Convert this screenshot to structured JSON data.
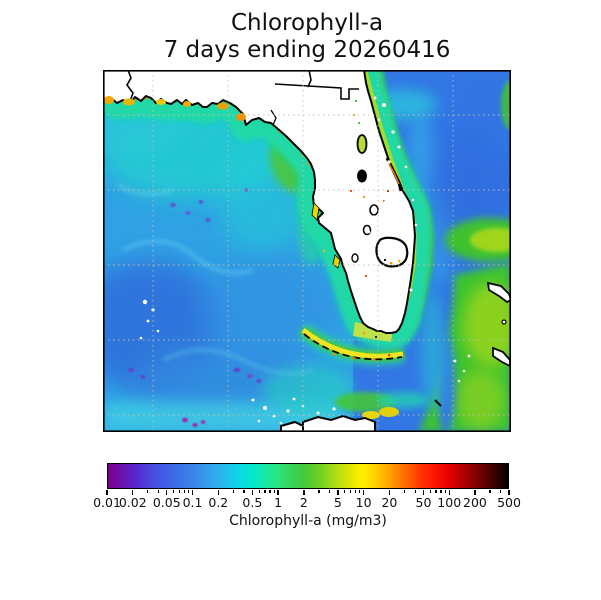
{
  "title": {
    "line1": "Chlorophyll-a",
    "line2": "7 days ending 20260416"
  },
  "colorbar": {
    "label": "Chlorophyll-a (mg/m3)",
    "scale": "log",
    "min": 0.01,
    "max": 500,
    "major_ticks": [
      0.01,
      0.02,
      0.05,
      0.1,
      0.2,
      0.5,
      1,
      2,
      5,
      10,
      20,
      50,
      100,
      200,
      500
    ],
    "tick_labels": [
      "0.01",
      "0.02",
      "0.05",
      "0.1",
      "0.2",
      "0.5",
      "1",
      "2",
      "5",
      "10",
      "20",
      "50",
      "100",
      "200",
      "500"
    ],
    "minor_ticks": [
      0.03,
      0.04,
      0.06,
      0.07,
      0.08,
      0.09,
      0.3,
      0.4,
      0.6,
      0.7,
      0.8,
      0.9,
      3,
      4,
      6,
      7,
      8,
      9,
      30,
      40,
      60,
      70,
      80,
      90,
      300,
      400
    ],
    "gradient": [
      {
        "v": 0.01,
        "c": "#7a0089"
      },
      {
        "v": 0.02,
        "c": "#5a23cd"
      },
      {
        "v": 0.035,
        "c": "#474fe2"
      },
      {
        "v": 0.05,
        "c": "#3f63e6"
      },
      {
        "v": 0.1,
        "c": "#3a84ea"
      },
      {
        "v": 0.2,
        "c": "#2fb1f0"
      },
      {
        "v": 0.35,
        "c": "#0cd8e6"
      },
      {
        "v": 0.5,
        "c": "#02e8cd"
      },
      {
        "v": 0.7,
        "c": "#17e9a7"
      },
      {
        "v": 1,
        "c": "#2ce47e"
      },
      {
        "v": 1.5,
        "c": "#38d254"
      },
      {
        "v": 2,
        "c": "#43ca39"
      },
      {
        "v": 3,
        "c": "#6ccf24"
      },
      {
        "v": 5,
        "c": "#b8dd12"
      },
      {
        "v": 8,
        "c": "#f0ea00"
      },
      {
        "v": 10,
        "c": "#ffef00"
      },
      {
        "v": 15,
        "c": "#ffc800"
      },
      {
        "v": 20,
        "c": "#ffa400"
      },
      {
        "v": 30,
        "c": "#ff6f00"
      },
      {
        "v": 50,
        "c": "#ff3000"
      },
      {
        "v": 70,
        "c": "#fa1400"
      },
      {
        "v": 100,
        "c": "#e50000"
      },
      {
        "v": 150,
        "c": "#b20000"
      },
      {
        "v": 200,
        "c": "#8a0000"
      },
      {
        "v": 300,
        "c": "#4f0000"
      },
      {
        "v": 400,
        "c": "#250000"
      },
      {
        "v": 500,
        "c": "#000000"
      }
    ]
  },
  "chart_data": {
    "type": "heatmap",
    "title": "Chlorophyll-a",
    "subtitle": "7 days ending 20260416",
    "colorbar_label": "Chlorophyll-a (mg/m3)",
    "scale": "log",
    "value_range": [
      0.01,
      500
    ],
    "region": "Florida peninsula with Gulf of Mexico (left), western Atlantic (right), Bahama Banks (lower right), Cuba (bottom edge)",
    "visual_readings": [
      "open Gulf of Mexico waters ~0.1-0.3 mg/m3 (blue with cyan swirls)",
      "scattered patches ~0.02-0.05 mg/m3 (purple) in southwest Gulf area",
      "West Florida shelf and Atlantic nearshore band ~1-5 mg/m3 (green to yellow-green)",
      "estuaries, Big Bend and Keys shoreline ~10-50 mg/m3 (yellow-orange)",
      "Bahama Banks ~2-10 mg/m3 (green with yellow-green cores)",
      "white speckles = cloud / no-data pixels; land masked white with black coastline",
      "dotted graticule lines over map"
    ]
  }
}
